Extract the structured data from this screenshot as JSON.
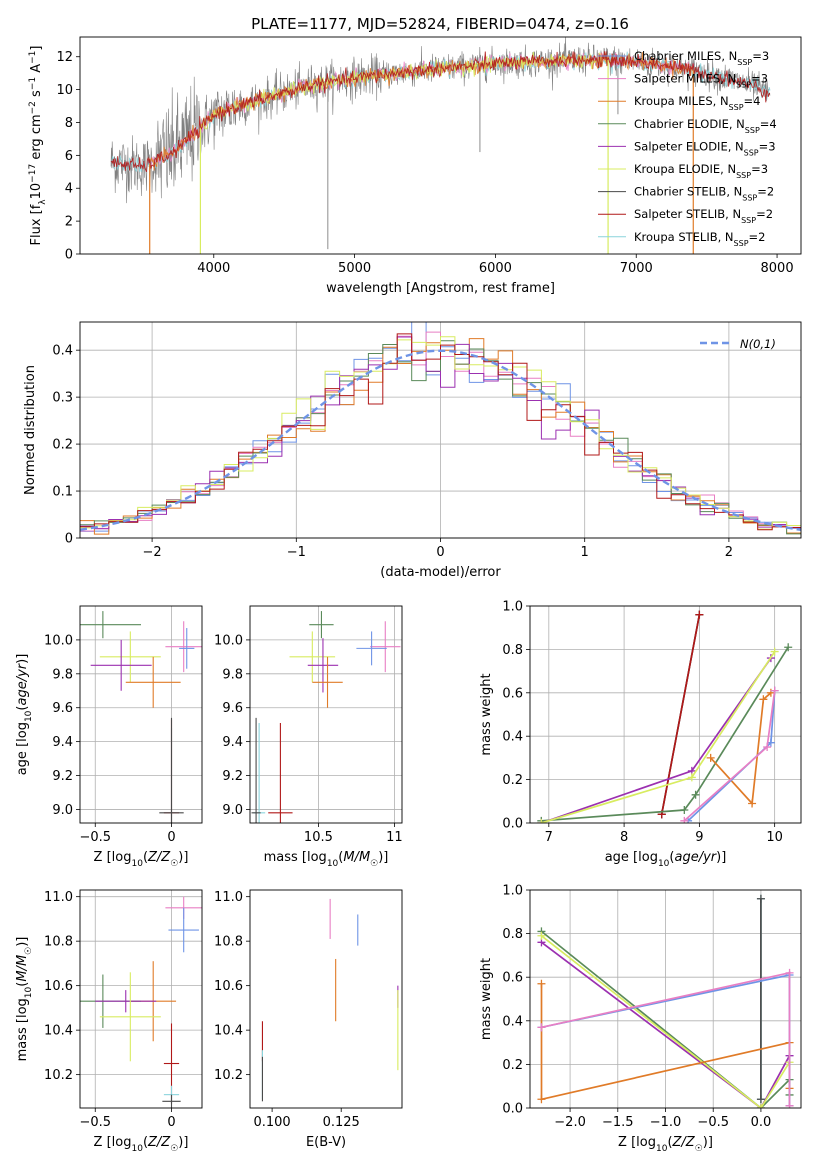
{
  "figure_title": "PLATE=1177, MJD=52824, FIBERID=0474, z=0.16",
  "colors": {
    "chabrier_miles": "#6f94e6",
    "salpeter_miles": "#e87fc4",
    "kroupa_miles": "#e07b28",
    "chabrier_elodie": "#5a8a5a",
    "salpeter_elodie": "#9b30b0",
    "kroupa_elodie": "#d8ec60",
    "chabrier_stelib": "#4a4a4a",
    "salpeter_stelib": "#b01818",
    "kroupa_stelib": "#8ad4dc",
    "data_gray": "#808080",
    "grid": "#b0b0b0"
  },
  "chart_data": [
    {
      "id": "spectrum",
      "type": "line",
      "xlabel": "wavelength [Angstrom, rest frame]",
      "ylabel": "Flux [f_λ10^-17 erg cm^-2 s^-1 A^-1]",
      "xlim": [
        3050,
        8170
      ],
      "ylim": [
        0,
        13.2
      ],
      "xticks": [
        4000,
        5000,
        6000,
        7000,
        8000
      ],
      "yticks": [
        0,
        2,
        4,
        6,
        8,
        10,
        12
      ],
      "grid": false,
      "legend_position": "upper-right",
      "legend": [
        {
          "label": "Chabrier MILES, N",
          "sub": "SSP",
          "suffix": "=3",
          "color_key": "chabrier_miles"
        },
        {
          "label": "Salpeter MILES, N",
          "sub": "SSP",
          "suffix": "=3",
          "color_key": "salpeter_miles"
        },
        {
          "label": "Kroupa MILES, N",
          "sub": "SSP",
          "suffix": "=4",
          "color_key": "kroupa_miles"
        },
        {
          "label": "Chabrier ELODIE, N",
          "sub": "SSP",
          "suffix": "=4",
          "color_key": "chabrier_elodie"
        },
        {
          "label": "Salpeter ELODIE, N",
          "sub": "SSP",
          "suffix": "=3",
          "color_key": "salpeter_elodie"
        },
        {
          "label": "Kroupa ELODIE, N",
          "sub": "SSP",
          "suffix": "=3",
          "color_key": "kroupa_elodie"
        },
        {
          "label": "Chabrier STELIB, N",
          "sub": "SSP",
          "suffix": "=2",
          "color_key": "chabrier_stelib"
        },
        {
          "label": "Salpeter STELIB, N",
          "sub": "SSP",
          "suffix": "=2",
          "color_key": "salpeter_stelib"
        },
        {
          "label": "Kroupa STELIB, N",
          "sub": "SSP",
          "suffix": "=2",
          "color_key": "kroupa_stelib"
        }
      ],
      "continuum": {
        "x": [
          3270,
          3500,
          3700,
          3900,
          4000,
          4100,
          4300,
          4500,
          4700,
          5000,
          5300,
          5500,
          5800,
          6000,
          6300,
          6500,
          6800,
          7000,
          7200,
          7500,
          7800,
          7950
        ],
        "y": [
          5.6,
          5.3,
          6.1,
          7.6,
          8.4,
          8.8,
          9.3,
          9.8,
          10.3,
          10.7,
          11.0,
          11.2,
          11.4,
          11.6,
          11.7,
          11.8,
          11.8,
          11.7,
          11.5,
          11.0,
          10.3,
          9.8
        ]
      },
      "model_ranges": [
        {
          "color_key": "kroupa_stelib",
          "x": [
            3270,
            7950
          ]
        },
        {
          "color_key": "salpeter_miles",
          "x": [
            3540,
            7410
          ]
        },
        {
          "color_key": "kroupa_miles",
          "x": [
            3540,
            7410
          ]
        },
        {
          "color_key": "kroupa_elodie",
          "x": [
            3900,
            6800
          ]
        },
        {
          "color_key": "salpeter_stelib",
          "x": [
            3270,
            7950
          ]
        }
      ],
      "model_dropouts": [
        {
          "color_key": "kroupa_miles",
          "x": 3545
        },
        {
          "color_key": "kroupa_miles",
          "x": 7405
        },
        {
          "color_key": "kroupa_elodie",
          "x": 3905
        },
        {
          "color_key": "kroupa_elodie",
          "x": 6800
        }
      ],
      "absorption_lines": [
        {
          "x": 4810,
          "y": 0.3
        },
        {
          "x": 5890,
          "y": 6.2
        },
        {
          "x": 6870,
          "y": 8.5
        }
      ]
    },
    {
      "id": "residuals",
      "type": "bar",
      "xlabel": "(data-model)/error",
      "ylabel": "Normed distribution",
      "xlim": [
        -2.5,
        2.5
      ],
      "ylim": [
        0,
        0.46
      ],
      "xticks": [
        -2,
        -1,
        0,
        1,
        2
      ],
      "yticks": [
        0.0,
        0.1,
        0.2,
        0.3,
        0.4
      ],
      "grid": true,
      "legend_position": "upper-right",
      "legend": [
        {
          "label": "N(0,1)",
          "color_key": "chabrier_miles",
          "style": "dashed"
        }
      ],
      "gaussian": {
        "mean": 0,
        "sigma": 1
      },
      "bin_width": 0.1,
      "hist_series": [
        "chabrier_miles",
        "salpeter_miles",
        "kroupa_miles",
        "chabrier_elodie",
        "salpeter_elodie",
        "kroupa_elodie",
        "salpeter_stelib"
      ]
    },
    {
      "id": "age_vs_z",
      "type": "scatter",
      "xlabel": "Z [log10(Z/Z☉)]",
      "ylabel": "age [log10(age/yr)]",
      "xlim": [
        -0.6,
        0.2
      ],
      "ylim": [
        8.92,
        10.2
      ],
      "xticks": [
        -0.5,
        0.0
      ],
      "yticks": [
        9.0,
        9.2,
        9.4,
        9.6,
        9.8,
        10.0
      ],
      "grid": true,
      "points": [
        {
          "color_key": "chabrier_elodie",
          "x": -0.45,
          "y": 10.09,
          "xerr": 0.25,
          "yerr": 0.08
        },
        {
          "color_key": "kroupa_elodie",
          "x": -0.27,
          "y": 9.9,
          "xerr": 0.2,
          "yerr": 0.15
        },
        {
          "color_key": "salpeter_elodie",
          "x": -0.33,
          "y": 9.85,
          "xerr": 0.2,
          "yerr": 0.15
        },
        {
          "color_key": "kroupa_miles",
          "x": -0.12,
          "y": 9.75,
          "xerr": 0.18,
          "yerr": 0.15
        },
        {
          "color_key": "salpeter_miles",
          "x": 0.08,
          "y": 9.96,
          "xerr": 0.12,
          "yerr": 0.15
        },
        {
          "color_key": "chabrier_miles",
          "x": 0.1,
          "y": 9.95,
          "xerr": 0.05,
          "yerr": 0.12
        },
        {
          "color_key": "kroupa_stelib",
          "x": 0.0,
          "y": 8.98,
          "xerr": 0.05,
          "yerr": 0.5
        },
        {
          "color_key": "salpeter_stelib",
          "x": 0.0,
          "y": 8.98,
          "xerr": 0.05,
          "yerr": 0.55
        },
        {
          "color_key": "chabrier_stelib",
          "x": 0.0,
          "y": 8.98,
          "xerr": 0.08,
          "yerr": 0.56
        }
      ]
    },
    {
      "id": "age_vs_mass",
      "type": "scatter",
      "xlabel": "mass [log10(M/M☉)]",
      "ylabel": "",
      "xlim": [
        10.05,
        11.05
      ],
      "ylim": [
        8.92,
        10.2
      ],
      "xticks": [
        10.5,
        11.0
      ],
      "yticks": [
        9.0,
        9.2,
        9.4,
        9.6,
        9.8,
        10.0
      ],
      "grid": true,
      "points": [
        {
          "color_key": "chabrier_elodie",
          "x": 10.52,
          "y": 10.09,
          "xerr": 0.08,
          "yerr": 0.08
        },
        {
          "color_key": "kroupa_elodie",
          "x": 10.46,
          "y": 9.9,
          "xerr": 0.15,
          "yerr": 0.15
        },
        {
          "color_key": "salpeter_elodie",
          "x": 10.53,
          "y": 9.85,
          "xerr": 0.1,
          "yerr": 0.16
        },
        {
          "color_key": "kroupa_miles",
          "x": 10.56,
          "y": 9.75,
          "xerr": 0.1,
          "yerr": 0.15
        },
        {
          "color_key": "salpeter_miles",
          "x": 10.94,
          "y": 9.96,
          "xerr": 0.1,
          "yerr": 0.15
        },
        {
          "color_key": "chabrier_miles",
          "x": 10.85,
          "y": 9.95,
          "xerr": 0.1,
          "yerr": 0.1
        },
        {
          "color_key": "kroupa_stelib",
          "x": 10.11,
          "y": 8.98,
          "xerr": 0.04,
          "yerr": 0.53
        },
        {
          "color_key": "chabrier_stelib",
          "x": 10.09,
          "y": 8.98,
          "xerr": 0.03,
          "yerr": 0.56
        },
        {
          "color_key": "salpeter_stelib",
          "x": 10.25,
          "y": 8.98,
          "xerr": 0.08,
          "yerr": 0.53
        }
      ]
    },
    {
      "id": "weight_vs_age",
      "type": "line",
      "xlabel": "age [log10(age/yr)]",
      "ylabel": "mass weight",
      "xlim": [
        6.75,
        10.35
      ],
      "ylim": [
        0,
        1.0
      ],
      "xticks": [
        7,
        8,
        9,
        10
      ],
      "yticks": [
        0.0,
        0.2,
        0.4,
        0.6,
        0.8,
        1.0
      ],
      "grid": true,
      "series": [
        {
          "color_key": "kroupa_stelib",
          "x": [
            8.5,
            9.0
          ],
          "y": [
            0.04,
            0.96
          ]
        },
        {
          "color_key": "chabrier_stelib",
          "x": [
            8.5,
            9.0
          ],
          "y": [
            0.04,
            0.96
          ]
        },
        {
          "color_key": "salpeter_stelib",
          "x": [
            8.5,
            9.0
          ],
          "y": [
            0.04,
            0.96
          ]
        },
        {
          "color_key": "chabrier_elodie",
          "x": [
            6.9,
            8.8,
            8.95,
            10.18
          ],
          "y": [
            0.01,
            0.06,
            0.13,
            0.81
          ]
        },
        {
          "color_key": "salpeter_elodie",
          "x": [
            6.9,
            8.9,
            9.95
          ],
          "y": [
            0.0,
            0.24,
            0.76
          ]
        },
        {
          "color_key": "kroupa_elodie",
          "x": [
            6.9,
            8.9,
            10.0
          ],
          "y": [
            0.0,
            0.21,
            0.79
          ]
        },
        {
          "color_key": "kroupa_miles",
          "x": [
            9.15,
            9.7,
            9.85,
            9.95
          ],
          "y": [
            0.3,
            0.09,
            0.57,
            0.6
          ]
        },
        {
          "color_key": "chabrier_miles",
          "x": [
            8.85,
            9.95,
            10.0
          ],
          "y": [
            0.01,
            0.37,
            0.61
          ]
        },
        {
          "color_key": "salpeter_miles",
          "x": [
            8.8,
            9.9,
            10.0
          ],
          "y": [
            0.01,
            0.35,
            0.61
          ]
        }
      ]
    },
    {
      "id": "mass_vs_z",
      "type": "scatter",
      "xlabel": "Z [log10(Z/Z☉)]",
      "ylabel": "mass [log10(M/M☉)]",
      "xlim": [
        -0.6,
        0.2
      ],
      "ylim": [
        10.05,
        11.03
      ],
      "xticks": [
        -0.5,
        0.0
      ],
      "yticks": [
        10.2,
        10.4,
        10.6,
        10.8,
        11.0
      ],
      "grid": true,
      "points": [
        {
          "color_key": "salpeter_miles",
          "x": 0.08,
          "y": 10.95,
          "xerr": 0.12,
          "yerr": 0.05
        },
        {
          "color_key": "chabrier_miles",
          "x": 0.08,
          "y": 10.85,
          "xerr": 0.1,
          "yerr": 0.1
        },
        {
          "color_key": "kroupa_miles",
          "x": -0.12,
          "y": 10.53,
          "xerr": 0.15,
          "yerr": 0.18
        },
        {
          "color_key": "chabrier_elodie",
          "x": -0.45,
          "y": 10.53,
          "xerr": 0.25,
          "yerr": 0.12
        },
        {
          "color_key": "salpeter_elodie",
          "x": -0.3,
          "y": 10.53,
          "xerr": 0.2,
          "yerr": 0.05
        },
        {
          "color_key": "kroupa_elodie",
          "x": -0.27,
          "y": 10.46,
          "xerr": 0.2,
          "yerr": 0.2
        },
        {
          "color_key": "salpeter_stelib",
          "x": 0.0,
          "y": 10.25,
          "xerr": 0.05,
          "yerr": 0.18
        },
        {
          "color_key": "kroupa_stelib",
          "x": 0.0,
          "y": 10.11,
          "xerr": 0.05,
          "yerr": 0.04
        },
        {
          "color_key": "chabrier_stelib",
          "x": 0.0,
          "y": 10.08,
          "xerr": 0.06,
          "yerr": 0.03
        }
      ]
    },
    {
      "id": "mass_vs_ebv",
      "type": "scatter",
      "xlabel": "E(B-V)",
      "ylabel": "",
      "xlim": [
        0.092,
        0.147
      ],
      "ylim": [
        10.05,
        11.03
      ],
      "xticks": [
        0.1,
        0.125
      ],
      "xtick_labels": [
        "0.100",
        "0.125"
      ],
      "yticks": [
        10.2,
        10.4,
        10.6,
        10.8,
        11.0
      ],
      "grid": false,
      "points": [
        {
          "color_key": "salpeter_miles",
          "x": 0.121,
          "y": 10.9,
          "yerr": 0.09
        },
        {
          "color_key": "chabrier_miles",
          "x": 0.131,
          "y": 10.85,
          "yerr": 0.07
        },
        {
          "color_key": "kroupa_miles",
          "x": 0.123,
          "y": 10.58,
          "yerr": 0.14
        },
        {
          "color_key": "salpeter_elodie",
          "x": 0.1455,
          "y": 10.55,
          "yerr": 0.05
        },
        {
          "color_key": "kroupa_elodie",
          "x": 0.1455,
          "y": 10.4,
          "yerr": 0.18
        },
        {
          "color_key": "salpeter_stelib",
          "x": 0.0965,
          "y": 10.35,
          "yerr": 0.09
        },
        {
          "color_key": "kroupa_stelib",
          "x": 0.0965,
          "y": 10.2,
          "yerr": 0.11
        },
        {
          "color_key": "chabrier_stelib",
          "x": 0.0965,
          "y": 10.18,
          "yerr": 0.1
        }
      ]
    },
    {
      "id": "weight_vs_z",
      "type": "line",
      "xlabel": "Z [log10(Z/Z☉)]",
      "ylabel": "mass weight",
      "xlim": [
        -2.42,
        0.42
      ],
      "ylim": [
        0,
        1.0
      ],
      "xticks": [
        -2.0,
        -1.5,
        -1.0,
        -0.5,
        0.0
      ],
      "xtick_labels": [
        "−2.0",
        "−1.5",
        "−1.0",
        "−0.5",
        "0.0"
      ],
      "yticks": [
        0.0,
        0.2,
        0.4,
        0.6,
        0.8,
        1.0
      ],
      "grid": true,
      "series": [
        {
          "color_key": "kroupa_stelib",
          "x": [
            0.0,
            0.0
          ],
          "y": [
            0.04,
            0.96
          ]
        },
        {
          "color_key": "chabrier_stelib",
          "x": [
            0.0,
            0.0
          ],
          "y": [
            0.04,
            0.96
          ]
        },
        {
          "color_key": "chabrier_elodie",
          "x": [
            -2.3,
            0.0,
            0.3,
            0.3
          ],
          "y": [
            0.81,
            0.0,
            0.13,
            0.06
          ]
        },
        {
          "color_key": "salpeter_elodie",
          "x": [
            -2.3,
            0.0,
            0.3
          ],
          "y": [
            0.76,
            0.0,
            0.24
          ]
        },
        {
          "color_key": "kroupa_elodie",
          "x": [
            -2.3,
            0.0,
            0.3
          ],
          "y": [
            0.79,
            0.0,
            0.21
          ]
        },
        {
          "color_key": "kroupa_miles",
          "x": [
            -2.3,
            -2.3,
            0.3,
            0.3
          ],
          "y": [
            0.57,
            0.04,
            0.3,
            0.09
          ]
        },
        {
          "color_key": "chabrier_miles",
          "x": [
            -2.3,
            0.3,
            0.3
          ],
          "y": [
            0.37,
            0.61,
            0.01
          ]
        },
        {
          "color_key": "salpeter_miles",
          "x": [
            -2.3,
            0.3,
            0.3
          ],
          "y": [
            0.37,
            0.62,
            0.01
          ]
        }
      ]
    }
  ]
}
